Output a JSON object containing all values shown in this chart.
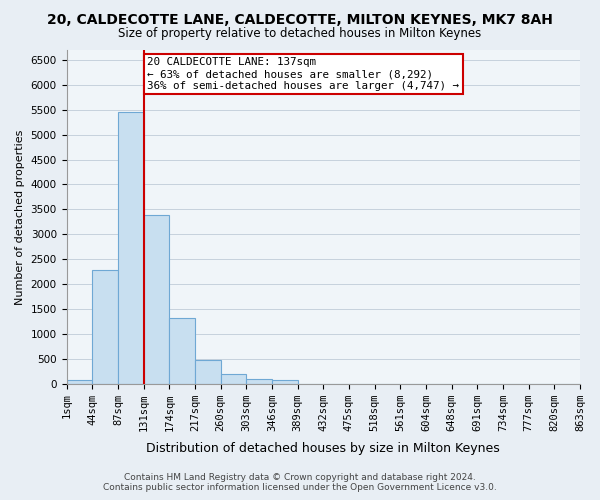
{
  "title": "20, CALDECOTTE LANE, CALDECOTTE, MILTON KEYNES, MK7 8AH",
  "subtitle": "Size of property relative to detached houses in Milton Keynes",
  "xlabel": "Distribution of detached houses by size in Milton Keynes",
  "ylabel": "Number of detached properties",
  "bar_values": [
    75,
    2280,
    5450,
    3380,
    1310,
    480,
    190,
    95,
    65,
    0,
    0,
    0,
    0,
    0,
    0,
    0,
    0,
    0,
    0,
    0
  ],
  "bin_labels": [
    "1sqm",
    "44sqm",
    "87sqm",
    "131sqm",
    "174sqm",
    "217sqm",
    "260sqm",
    "303sqm",
    "346sqm",
    "389sqm",
    "432sqm",
    "475sqm",
    "518sqm",
    "561sqm",
    "604sqm",
    "648sqm",
    "691sqm",
    "734sqm",
    "777sqm",
    "820sqm",
    "863sqm"
  ],
  "bar_color": "#c8dff0",
  "bar_edge_color": "#6fa8d4",
  "vline_x_bin": 3,
  "vline_color": "#cc0000",
  "ylim": [
    0,
    6700
  ],
  "yticks": [
    0,
    500,
    1000,
    1500,
    2000,
    2500,
    3000,
    3500,
    4000,
    4500,
    5000,
    5500,
    6000,
    6500
  ],
  "annotation_text": "20 CALDECOTTE LANE: 137sqm\n← 63% of detached houses are smaller (8,292)\n36% of semi-detached houses are larger (4,747) →",
  "annotation_box_color": "white",
  "annotation_box_edge": "#cc0000",
  "footer_text": "Contains HM Land Registry data © Crown copyright and database right 2024.\nContains public sector information licensed under the Open Government Licence v3.0.",
  "background_color": "#e8eef4",
  "plot_bg_color": "#f0f5f9",
  "grid_color": "#c0ccd8",
  "title_fontsize": 10,
  "subtitle_fontsize": 8.5,
  "xlabel_fontsize": 9,
  "ylabel_fontsize": 8,
  "tick_fontsize": 7.5,
  "footer_fontsize": 6.5
}
